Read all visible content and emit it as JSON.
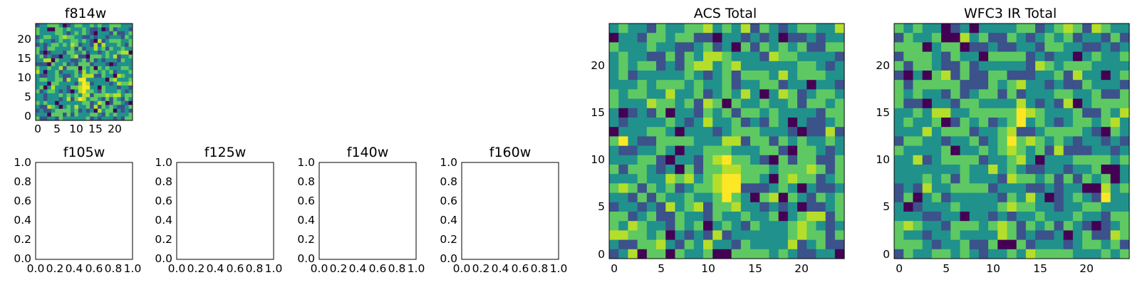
{
  "chart_data": [
    {
      "id": "f814w",
      "type": "heatmap",
      "title": "f814w",
      "grid_size": 25,
      "xticks": [
        "0",
        "5",
        "10",
        "15",
        "20"
      ],
      "yticks": [
        "0",
        "5",
        "10",
        "15",
        "20"
      ],
      "grid": false,
      "colormap": "viridis",
      "source_center": [
        12,
        8
      ],
      "colors": [
        "#440154",
        "#3b528b",
        "#21918c",
        "#5ec962",
        "#b5de2b",
        "#fde725"
      ]
    },
    {
      "id": "f105w",
      "type": "heatmap",
      "title": "f105w",
      "empty": true,
      "xticks": [
        "0.0",
        "0.2",
        "0.4",
        "0.6",
        "0.8",
        "1.0"
      ],
      "yticks": [
        "0.0",
        "0.2",
        "0.4",
        "0.6",
        "0.8",
        "1.0"
      ],
      "xlim": [
        0,
        1
      ],
      "ylim": [
        0,
        1
      ]
    },
    {
      "id": "f125w",
      "type": "heatmap",
      "title": "f125w",
      "empty": true,
      "xticks": [
        "0.0",
        "0.2",
        "0.4",
        "0.6",
        "0.8",
        "1.0"
      ],
      "yticks": [
        "0.0",
        "0.2",
        "0.4",
        "0.6",
        "0.8",
        "1.0"
      ],
      "xlim": [
        0,
        1
      ],
      "ylim": [
        0,
        1
      ]
    },
    {
      "id": "f140w",
      "type": "heatmap",
      "title": "f140w",
      "empty": true,
      "xticks": [
        "0.0",
        "0.2",
        "0.4",
        "0.6",
        "0.8",
        "1.0"
      ],
      "yticks": [
        "0.0",
        "0.2",
        "0.4",
        "0.6",
        "0.8",
        "1.0"
      ],
      "xlim": [
        0,
        1
      ],
      "ylim": [
        0,
        1
      ]
    },
    {
      "id": "f160w",
      "type": "heatmap",
      "title": "f160w",
      "empty": true,
      "xticks": [
        "0.0",
        "0.2",
        "0.4",
        "0.6",
        "0.8",
        "1.0"
      ],
      "yticks": [
        "0.0",
        "0.2",
        "0.4",
        "0.6",
        "0.8",
        "1.0"
      ],
      "xlim": [
        0,
        1
      ],
      "ylim": [
        0,
        1
      ]
    },
    {
      "id": "acs-total",
      "type": "heatmap",
      "title": "ACS Total",
      "grid_size": 25,
      "xticks": [
        "0",
        "5",
        "10",
        "15",
        "20"
      ],
      "yticks": [
        "0",
        "5",
        "10",
        "15",
        "20"
      ],
      "grid": false,
      "colormap": "viridis",
      "source_center": [
        12,
        8
      ]
    },
    {
      "id": "wfc3-ir-total",
      "type": "heatmap",
      "title": "WFC3 IR Total",
      "grid_size": 25,
      "xticks": [
        "0",
        "5",
        "10",
        "15",
        "20"
      ],
      "yticks": [
        "0",
        "5",
        "10",
        "15",
        "20"
      ],
      "grid": false,
      "colormap": "viridis",
      "source_center": [
        12,
        12
      ]
    }
  ]
}
